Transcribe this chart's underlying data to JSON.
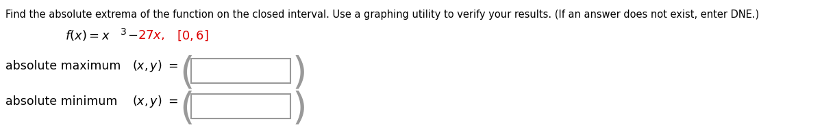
{
  "instructions_text": "Find the absolute extrema of the function on the closed interval. Use a graphing utility to verify your results. (If an answer does not exist, enter DNE.)",
  "abs_max_label": "absolute maximum",
  "abs_min_label": "absolute minimum",
  "background_color": "#ffffff",
  "text_color": "#000000",
  "red_color": "#dd0000",
  "box_edge_color": "#999999",
  "instructions_fontsize": 10.5,
  "function_fontsize": 13,
  "label_fontsize": 12.5
}
